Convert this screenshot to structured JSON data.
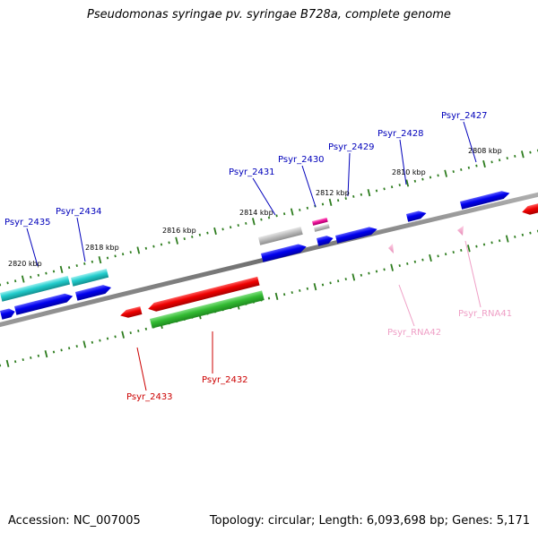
{
  "title": "Pseudomonas syringae pv. syringae B728a, complete genome",
  "footer": {
    "accession": "Accession: NC_007005",
    "summary": "Topology: circular; Length: 6,093,698 bp; Genes: 5,171"
  },
  "colors": {
    "backbone": "#808080",
    "tick": "#2e7d1f",
    "gene_label_forward": "#0000bb",
    "gene_label_reverse": "#cc0000",
    "rna_label": "#ef9fc6"
  },
  "scale_labels": [
    "2808 kbp",
    "2810 kbp",
    "2812 kbp",
    "2814 kbp",
    "2816 kbp",
    "2818 kbp",
    "2820 kbp"
  ],
  "gene_labels": [
    {
      "text": "Psyr_2427",
      "kind": "forward"
    },
    {
      "text": "Psyr_2428",
      "kind": "forward"
    },
    {
      "text": "Psyr_2429",
      "kind": "forward"
    },
    {
      "text": "Psyr_2430",
      "kind": "forward"
    },
    {
      "text": "Psyr_2431",
      "kind": "forward"
    },
    {
      "text": "Psyr_2434",
      "kind": "forward"
    },
    {
      "text": "Psyr_2435",
      "kind": "forward"
    },
    {
      "text": "Psyr_2432",
      "kind": "reverse"
    },
    {
      "text": "Psyr_2433",
      "kind": "reverse"
    },
    {
      "text": "Psyr_RNA41",
      "kind": "rna"
    },
    {
      "text": "Psyr_RNA42",
      "kind": "rna"
    }
  ]
}
